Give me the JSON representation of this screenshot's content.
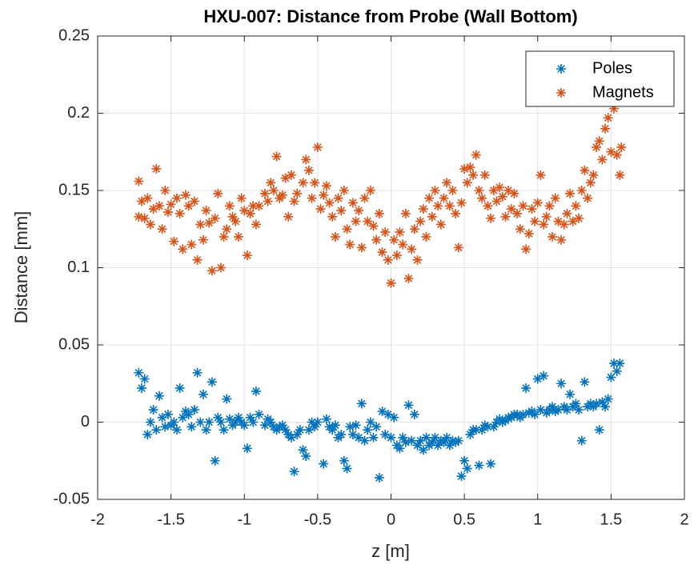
{
  "chart_data": {
    "type": "scatter",
    "title": "HXU-007: Distance from Probe (Wall Bottom)",
    "xlabel": "z [m]",
    "ylabel": "Distance [mm]",
    "xlim": [
      -2,
      2
    ],
    "xticks": [
      -2,
      -1.5,
      -1,
      -0.5,
      0,
      0.5,
      1,
      1.5,
      2
    ],
    "ylim": [
      -0.05,
      0.25
    ],
    "yticks": [
      -0.05,
      0,
      0.05,
      0.1,
      0.15,
      0.2,
      0.25
    ],
    "grid": true,
    "legend": "northeast",
    "series": [
      {
        "name": "Poles",
        "color": "#0072bd",
        "x": [
          -1.72,
          -1.7,
          -1.68,
          -1.66,
          -1.64,
          -1.62,
          -1.6,
          -1.58,
          -1.56,
          -1.54,
          -1.52,
          -1.5,
          -1.48,
          -1.46,
          -1.44,
          -1.42,
          -1.4,
          -1.38,
          -1.36,
          -1.34,
          -1.32,
          -1.3,
          -1.28,
          -1.26,
          -1.24,
          -1.22,
          -1.2,
          -1.18,
          -1.16,
          -1.14,
          -1.12,
          -1.1,
          -1.08,
          -1.06,
          -1.04,
          -1.02,
          -1.0,
          -0.98,
          -0.96,
          -0.94,
          -0.92,
          -0.9,
          -0.86,
          -0.84,
          -0.82,
          -0.8,
          -0.78,
          -0.76,
          -0.74,
          -0.72,
          -0.7,
          -0.68,
          -0.66,
          -0.64,
          -0.62,
          -0.6,
          -0.58,
          -0.56,
          -0.54,
          -0.52,
          -0.5,
          -0.46,
          -0.44,
          -0.42,
          -0.4,
          -0.38,
          -0.36,
          -0.34,
          -0.32,
          -0.3,
          -0.28,
          -0.26,
          -0.24,
          -0.22,
          -0.2,
          -0.18,
          -0.16,
          -0.14,
          -0.12,
          -0.1,
          -0.08,
          -0.06,
          -0.04,
          -0.02,
          0.0,
          0.02,
          0.04,
          0.06,
          0.08,
          0.1,
          0.12,
          0.14,
          0.16,
          0.18,
          0.2,
          0.22,
          0.24,
          0.26,
          0.28,
          0.3,
          0.32,
          0.34,
          0.36,
          0.38,
          0.4,
          0.42,
          0.44,
          0.46,
          0.48,
          0.5,
          0.52,
          0.54,
          0.56,
          0.58,
          0.6,
          0.62,
          0.64,
          0.66,
          0.68,
          0.7,
          0.72,
          0.74,
          0.76,
          0.78,
          0.8,
          0.82,
          0.84,
          0.86,
          0.88,
          0.9,
          0.92,
          0.94,
          0.96,
          0.98,
          1.0,
          1.02,
          1.04,
          1.06,
          1.08,
          1.1,
          1.12,
          1.14,
          1.16,
          1.18,
          1.2,
          1.22,
          1.24,
          1.26,
          1.28,
          1.3,
          1.32,
          1.34,
          1.36,
          1.38,
          1.4,
          1.42,
          1.44,
          1.46,
          1.48,
          1.5,
          1.52,
          1.54,
          1.56
        ],
        "values": [
          0.032,
          0.022,
          0.028,
          -0.008,
          0.0,
          0.008,
          -0.005,
          0.017,
          0.003,
          -0.003,
          0.005,
          -0.002,
          0.0,
          -0.005,
          0.022,
          0.003,
          0.007,
          0.005,
          -0.003,
          0.008,
          0.032,
          0.0,
          0.018,
          -0.005,
          0.0,
          0.026,
          -0.025,
          0.003,
          0.0,
          -0.005,
          0.015,
          0.002,
          -0.002,
          0.0,
          0.003,
          0.0,
          -0.002,
          -0.017,
          0.003,
          0.0,
          0.02,
          0.005,
          -0.002,
          0.002,
          0.0,
          -0.003,
          -0.005,
          -0.003,
          -0.002,
          -0.005,
          -0.008,
          -0.01,
          -0.032,
          -0.008,
          -0.005,
          -0.018,
          -0.022,
          -0.005,
          0.0,
          -0.003,
          0.0,
          -0.027,
          0.002,
          -0.003,
          -0.005,
          -0.002,
          -0.01,
          -0.008,
          -0.025,
          -0.03,
          -0.003,
          -0.008,
          -0.002,
          -0.01,
          0.012,
          -0.012,
          -0.005,
          0.0,
          -0.01,
          -0.003,
          -0.036,
          0.007,
          -0.008,
          0.005,
          -0.01,
          0.003,
          -0.015,
          -0.017,
          -0.01,
          -0.013,
          0.011,
          -0.012,
          0.005,
          -0.015,
          -0.012,
          -0.018,
          -0.01,
          -0.015,
          -0.013,
          -0.01,
          -0.015,
          -0.012,
          -0.013,
          -0.01,
          -0.015,
          -0.012,
          -0.013,
          -0.012,
          -0.035,
          -0.025,
          -0.03,
          -0.008,
          -0.005,
          -0.005,
          -0.028,
          -0.005,
          -0.002,
          -0.003,
          -0.027,
          -0.003,
          0.0,
          0.002,
          0.0,
          0.001,
          0.003,
          0.003,
          0.005,
          0.005,
          0.003,
          0.005,
          0.022,
          0.006,
          0.007,
          0.005,
          0.028,
          0.008,
          0.03,
          0.006,
          0.008,
          0.01,
          0.007,
          0.008,
          0.025,
          0.01,
          0.008,
          0.018,
          0.01,
          0.012,
          0.008,
          -0.012,
          0.026,
          0.01,
          0.012,
          0.01,
          0.012,
          -0.005,
          0.013,
          0.01,
          0.015,
          0.029,
          0.038,
          0.033,
          0.038
        ]
      },
      {
        "name": "Magnets",
        "color": "#d95319",
        "x": [
          -1.72,
          -1.72,
          -1.7,
          -1.68,
          -1.66,
          -1.64,
          -1.62,
          -1.6,
          -1.58,
          -1.56,
          -1.54,
          -1.52,
          -1.5,
          -1.48,
          -1.46,
          -1.44,
          -1.42,
          -1.4,
          -1.38,
          -1.36,
          -1.34,
          -1.32,
          -1.3,
          -1.28,
          -1.26,
          -1.24,
          -1.22,
          -1.2,
          -1.18,
          -1.16,
          -1.14,
          -1.12,
          -1.1,
          -1.08,
          -1.06,
          -1.04,
          -1.02,
          -1.0,
          -0.98,
          -0.96,
          -0.94,
          -0.92,
          -0.9,
          -0.86,
          -0.84,
          -0.82,
          -0.8,
          -0.78,
          -0.76,
          -0.74,
          -0.72,
          -0.7,
          -0.68,
          -0.66,
          -0.64,
          -0.6,
          -0.58,
          -0.56,
          -0.54,
          -0.52,
          -0.5,
          -0.48,
          -0.46,
          -0.44,
          -0.42,
          -0.4,
          -0.38,
          -0.36,
          -0.34,
          -0.32,
          -0.3,
          -0.28,
          -0.26,
          -0.24,
          -0.22,
          -0.2,
          -0.18,
          -0.16,
          -0.14,
          -0.12,
          -0.1,
          -0.08,
          -0.06,
          -0.04,
          -0.02,
          0.0,
          0.02,
          0.04,
          0.06,
          0.08,
          0.1,
          0.12,
          0.14,
          0.16,
          0.18,
          0.2,
          0.22,
          0.24,
          0.26,
          0.28,
          0.3,
          0.32,
          0.34,
          0.36,
          0.38,
          0.4,
          0.42,
          0.44,
          0.46,
          0.48,
          0.5,
          0.52,
          0.54,
          0.56,
          0.58,
          0.6,
          0.62,
          0.64,
          0.66,
          0.68,
          0.7,
          0.72,
          0.74,
          0.76,
          0.78,
          0.8,
          0.82,
          0.84,
          0.86,
          0.88,
          0.9,
          0.92,
          0.94,
          0.96,
          0.98,
          1.0,
          1.02,
          1.04,
          1.06,
          1.08,
          1.1,
          1.12,
          1.14,
          1.16,
          1.18,
          1.2,
          1.22,
          1.24,
          1.26,
          1.28,
          1.3,
          1.32,
          1.34,
          1.36,
          1.38,
          1.4,
          1.42,
          1.44,
          1.46,
          1.48,
          1.5,
          1.52,
          1.54,
          1.56,
          1.57
        ],
        "values": [
          0.156,
          0.133,
          0.143,
          0.132,
          0.145,
          0.128,
          0.138,
          0.164,
          0.14,
          0.125,
          0.15,
          0.136,
          0.141,
          0.117,
          0.145,
          0.135,
          0.112,
          0.147,
          0.14,
          0.115,
          0.143,
          0.105,
          0.128,
          0.118,
          0.137,
          0.129,
          0.098,
          0.132,
          0.148,
          0.1,
          0.12,
          0.125,
          0.14,
          0.133,
          0.13,
          0.12,
          0.145,
          0.137,
          0.108,
          0.135,
          0.14,
          0.128,
          0.14,
          0.148,
          0.143,
          0.155,
          0.15,
          0.172,
          0.145,
          0.147,
          0.158,
          0.133,
          0.16,
          0.143,
          0.148,
          0.155,
          0.17,
          0.163,
          0.145,
          0.155,
          0.178,
          0.138,
          0.147,
          0.153,
          0.142,
          0.133,
          0.12,
          0.145,
          0.137,
          0.15,
          0.125,
          0.115,
          0.142,
          0.13,
          0.137,
          0.113,
          0.145,
          0.13,
          0.15,
          0.127,
          0.118,
          0.135,
          0.11,
          0.123,
          0.105,
          0.09,
          0.118,
          0.108,
          0.123,
          0.115,
          0.135,
          0.093,
          0.112,
          0.125,
          0.105,
          0.13,
          0.138,
          0.12,
          0.145,
          0.133,
          0.15,
          0.14,
          0.128,
          0.145,
          0.155,
          0.14,
          0.15,
          0.135,
          0.113,
          0.142,
          0.164,
          0.155,
          0.165,
          0.16,
          0.173,
          0.15,
          0.145,
          0.16,
          0.14,
          0.132,
          0.15,
          0.143,
          0.152,
          0.146,
          0.133,
          0.15,
          0.138,
          0.148,
          0.135,
          0.125,
          0.14,
          0.112,
          0.122,
          0.138,
          0.13,
          0.142,
          0.16,
          0.128,
          0.133,
          0.14,
          0.12,
          0.145,
          0.13,
          0.118,
          0.128,
          0.135,
          0.148,
          0.13,
          0.14,
          0.132,
          0.15,
          0.163,
          0.145,
          0.155,
          0.16,
          0.178,
          0.182,
          0.17,
          0.19,
          0.197,
          0.175,
          0.203,
          0.173,
          0.16,
          0.178
        ]
      }
    ]
  }
}
